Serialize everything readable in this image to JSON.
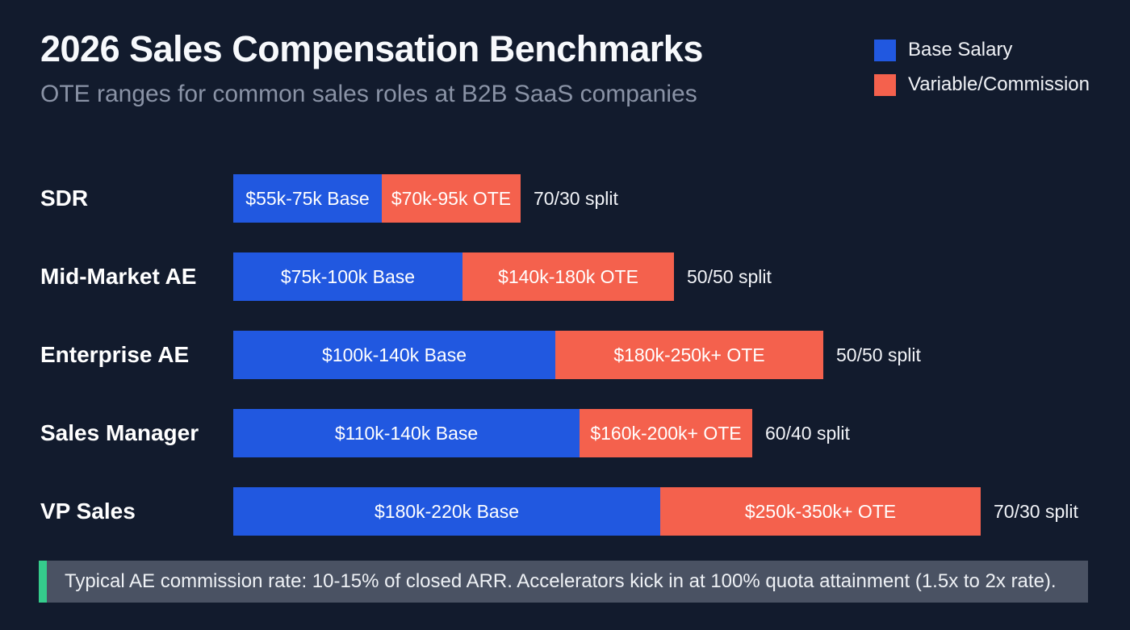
{
  "header": {
    "title": "2026 Sales Compensation Benchmarks",
    "subtitle": "OTE ranges for common sales roles at B2B SaaS companies"
  },
  "legend": {
    "items": [
      {
        "label": "Base Salary",
        "color": "#2158e0"
      },
      {
        "label": "Variable/Commission",
        "color": "#f4614d"
      }
    ]
  },
  "chart_data": {
    "type": "bar",
    "variant": "horizontal-stacked",
    "title": "2026 Sales Compensation Benchmarks",
    "subtitle": "OTE ranges for common sales roles at B2B SaaS companies",
    "legend_position": "top-right",
    "grid": false,
    "categories": [
      "SDR",
      "Mid-Market AE",
      "Enterprise AE",
      "Sales Manager",
      "VP Sales"
    ],
    "series": [
      {
        "name": "Base Salary",
        "labels": [
          "$55k-75k Base",
          "$75k-100k Base",
          "$100k-140k Base",
          "$110k-140k Base",
          "$180k-220k Base"
        ],
        "range_k_usd": [
          [
            55,
            75
          ],
          [
            75,
            100
          ],
          [
            100,
            140
          ],
          [
            110,
            140
          ],
          [
            180,
            220
          ]
        ]
      },
      {
        "name": "Variable/Commission",
        "labels": [
          "$70k-95k OTE",
          "$140k-180k OTE",
          "$180k-250k+ OTE",
          "$160k-200k+ OTE",
          "$250k-350k+ OTE"
        ],
        "range_k_usd": [
          [
            70,
            95
          ],
          [
            140,
            180
          ],
          [
            180,
            250
          ],
          [
            160,
            200
          ],
          [
            250,
            350
          ]
        ]
      }
    ],
    "splits": [
      "70/30 split",
      "50/50 split",
      "50/50 split",
      "60/40 split",
      "70/30 split"
    ],
    "rows": [
      {
        "role": "SDR",
        "base_label": "$55k-75k Base",
        "base_width": 184,
        "variable_label": "$70k-95k OTE",
        "variable_width": 172,
        "split": "70/30 split"
      },
      {
        "role": "Mid-Market AE",
        "base_label": "$75k-100k Base",
        "base_width": 284,
        "variable_label": "$140k-180k OTE",
        "variable_width": 262,
        "split": "50/50 split"
      },
      {
        "role": "Enterprise AE",
        "base_label": "$100k-140k Base",
        "base_width": 399,
        "variable_label": "$180k-250k+ OTE",
        "variable_width": 332,
        "split": "50/50 split"
      },
      {
        "role": "Sales Manager",
        "base_label": "$110k-140k Base",
        "base_width": 429,
        "variable_label": "$160k-200k+ OTE",
        "variable_width": 214,
        "split": "60/40 split"
      },
      {
        "role": "VP Sales",
        "base_label": "$180k-220k Base",
        "base_width": 529,
        "variable_label": "$250k-350k+ OTE",
        "variable_width": 397,
        "split": "70/30 split"
      }
    ]
  },
  "footnote": {
    "text": "Typical AE commission rate: 10-15% of closed ARR. Accelerators kick in at 100% quota attainment (1.5x to 2x rate).",
    "accent_color": "#35cc8c"
  }
}
